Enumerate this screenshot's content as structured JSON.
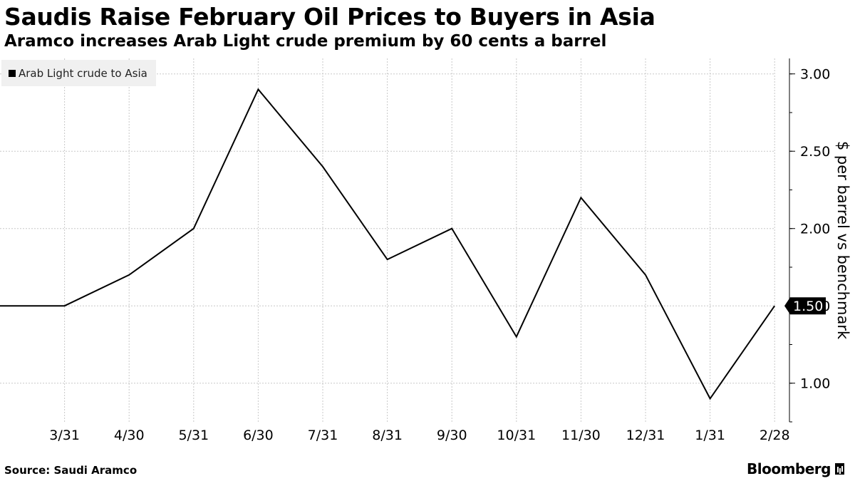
{
  "header": {
    "title": "Saudis Raise February Oil Prices to Buyers in Asia",
    "subtitle": "Aramco increases Arab Light crude premium by 60 cents a barrel"
  },
  "footer": {
    "source": "Source:  Saudi Aramco",
    "brand": "Bloomberg"
  },
  "chart_data": {
    "type": "line",
    "title": "Saudis Raise February Oil Prices to Buyers in Asia",
    "subtitle": "Aramco increases Arab Light crude premium by 60 cents a barrel",
    "xlabel": "",
    "ylabel": "$ per barrel vs benchmark",
    "x": [
      "2/28",
      "3/31",
      "4/30",
      "5/31",
      "6/30",
      "7/31",
      "8/31",
      "9/30",
      "10/31",
      "11/30",
      "12/31",
      "1/31",
      "2/28"
    ],
    "xtick_labels": [
      "3/31",
      "4/30",
      "5/31",
      "6/30",
      "7/31",
      "8/31",
      "9/30",
      "10/31",
      "11/30",
      "12/31",
      "1/31",
      "2/28"
    ],
    "series": [
      {
        "name": "Arab Light crude to Asia",
        "values": [
          1.5,
          1.5,
          1.7,
          2.0,
          2.9,
          2.4,
          1.8,
          2.0,
          1.3,
          2.2,
          1.7,
          0.9,
          1.5
        ],
        "color": "#000000"
      }
    ],
    "yticks": [
      "1.00",
      "1.50",
      "2.00",
      "2.50",
      "3.00"
    ],
    "ylim": [
      0.75,
      3.1
    ],
    "last_value_label": "1.50",
    "y_axis_side": "right",
    "grid": true,
    "legend_position": "top-left"
  }
}
